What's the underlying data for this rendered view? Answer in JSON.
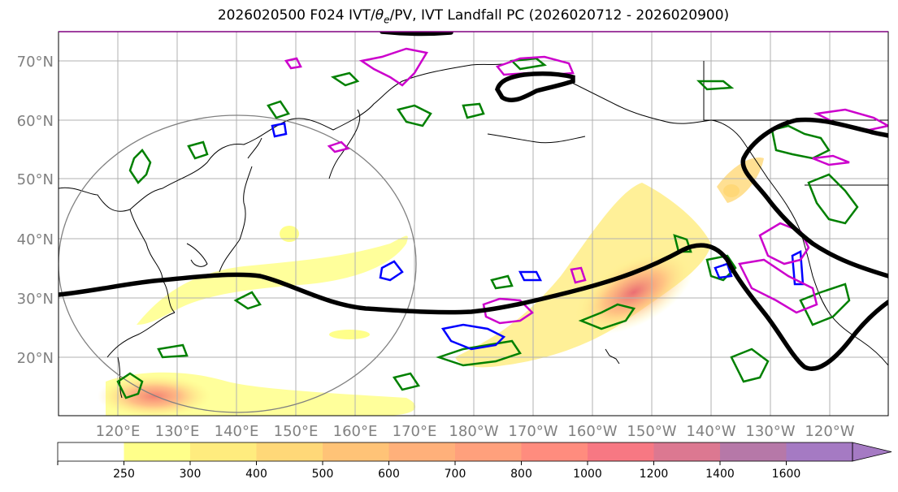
{
  "title": {
    "prefix": "2026020500 F024 IVT/",
    "theta": "θ",
    "theta_sub": "e",
    "suffix": "/PV, IVT Landfall PC (2026020712 - 2026020900)"
  },
  "axes": {
    "lat_labels": [
      "70°N",
      "60°N",
      "50°N",
      "40°N",
      "30°N",
      "20°N"
    ],
    "lon_labels": [
      "120°E",
      "130°E",
      "140°E",
      "150°E",
      "160°E",
      "170°E",
      "180°W",
      "170°W",
      "160°W",
      "150°W",
      "140°W",
      "130°W",
      "120°W"
    ],
    "lat_values": [
      70,
      60,
      50,
      40,
      30,
      20
    ],
    "grid": true
  },
  "colorbar": {
    "ticks": [
      "250",
      "300",
      "400",
      "500",
      "600",
      "700",
      "800",
      "1000",
      "1200",
      "1400",
      "1600"
    ],
    "colors": [
      "#ffffff",
      "#ffff8a",
      "#ffec7e",
      "#ffd878",
      "#ffc377",
      "#ffb07a",
      "#ffa07c",
      "#ff8c7e",
      "#f77883",
      "#dc7891",
      "#b678a8",
      "#a57ac3"
    ],
    "extend": "max"
  },
  "style": {
    "theta_color": "#008000",
    "pv_color": "#0000ff",
    "landfall_color": "#cc00cc",
    "jet_color": "#000000",
    "grid_color": "#b0b0b0",
    "coast_color": "#000000"
  }
}
